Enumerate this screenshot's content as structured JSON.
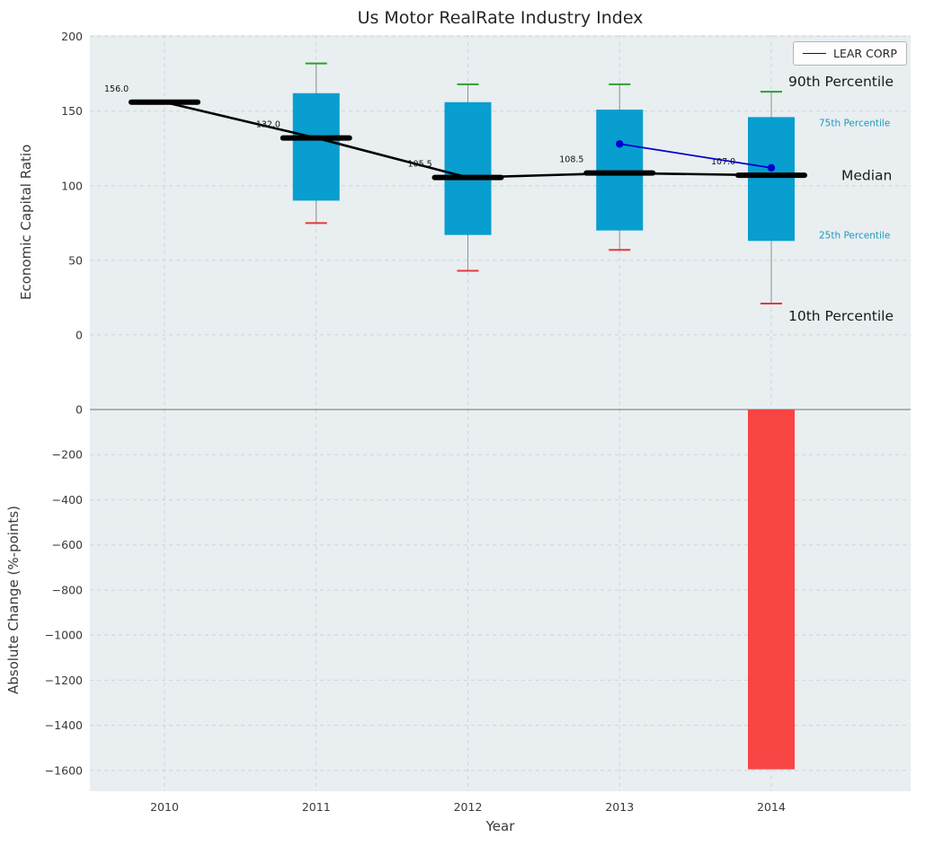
{
  "chart_data": [
    {
      "type": "boxplot",
      "title": "Us Motor RealRate Industry Index",
      "ylabel": "Economic Capital Ratio",
      "ylim": [
        -50,
        201
      ],
      "yticks": [
        0,
        50,
        100,
        150,
        200
      ],
      "categories": [
        "2010",
        "2011",
        "2012",
        "2013",
        "2014"
      ],
      "grid": true,
      "boxes": [
        {
          "category": "2010",
          "median": 156.0,
          "q1": null,
          "q3": null,
          "p10": null,
          "p90": null
        },
        {
          "category": "2011",
          "median": 132.0,
          "q1": 90,
          "q3": 162,
          "p10": 75,
          "p90": 182
        },
        {
          "category": "2012",
          "median": 105.5,
          "q1": 67,
          "q3": 156,
          "p10": 43,
          "p90": 168
        },
        {
          "category": "2013",
          "median": 108.5,
          "q1": 70,
          "q3": 151,
          "p10": 57,
          "p90": 168
        },
        {
          "category": "2014",
          "median": 107.0,
          "q1": 63,
          "q3": 146,
          "p10": 21,
          "p90": 163
        }
      ],
      "median_labels": [
        "156.0",
        "132.0",
        "105.5",
        "108.5",
        "107.0"
      ],
      "series": [
        {
          "name": "LEAR CORP",
          "color": "#0000cc",
          "points": [
            {
              "x": "2013",
              "y": 128
            },
            {
              "x": "2014",
              "y": 112
            }
          ]
        }
      ],
      "legend_position": "upper right",
      "right_annotations": [
        {
          "text": "90th Percentile",
          "value": 170,
          "emphasis": "large",
          "color": "#1a1a1a",
          "x": 877
        },
        {
          "text": "75th Percentile",
          "value": 142,
          "emphasis": "small",
          "color": "#1a9bbc",
          "x": 911
        },
        {
          "text": "Median",
          "value": 107,
          "emphasis": "large",
          "color": "#1a1a1a",
          "x": 936
        },
        {
          "text": "25th Percentile",
          "value": 67,
          "emphasis": "small",
          "color": "#1a9bbc",
          "x": 911
        },
        {
          "text": "10th Percentile",
          "value": 13,
          "emphasis": "large",
          "color": "#1a1a1a",
          "x": 877
        }
      ],
      "colors": {
        "box": "#089ecf",
        "p90_cap": "#2ca02c",
        "p10_cap": "#e53935",
        "whisker": "#909090",
        "median": "#000000",
        "trend": "#000000",
        "panel": "#e9eef1",
        "gridline": "#ccd5d9",
        "tick_label": "#3a3a3a"
      }
    },
    {
      "type": "bar",
      "ylabel": "Absolute Change (%-points)",
      "xlabel": "Year",
      "ylim": [
        -1692,
        0
      ],
      "yticks": [
        0,
        -200,
        -400,
        -600,
        -800,
        -1000,
        -1200,
        -1400,
        -1600
      ],
      "categories": [
        "2010",
        "2011",
        "2012",
        "2013",
        "2014"
      ],
      "values": [
        null,
        null,
        null,
        null,
        -1595
      ],
      "bar_color": "#f94444",
      "zero_line_color": "#8a8a8a",
      "grid": true
    }
  ]
}
